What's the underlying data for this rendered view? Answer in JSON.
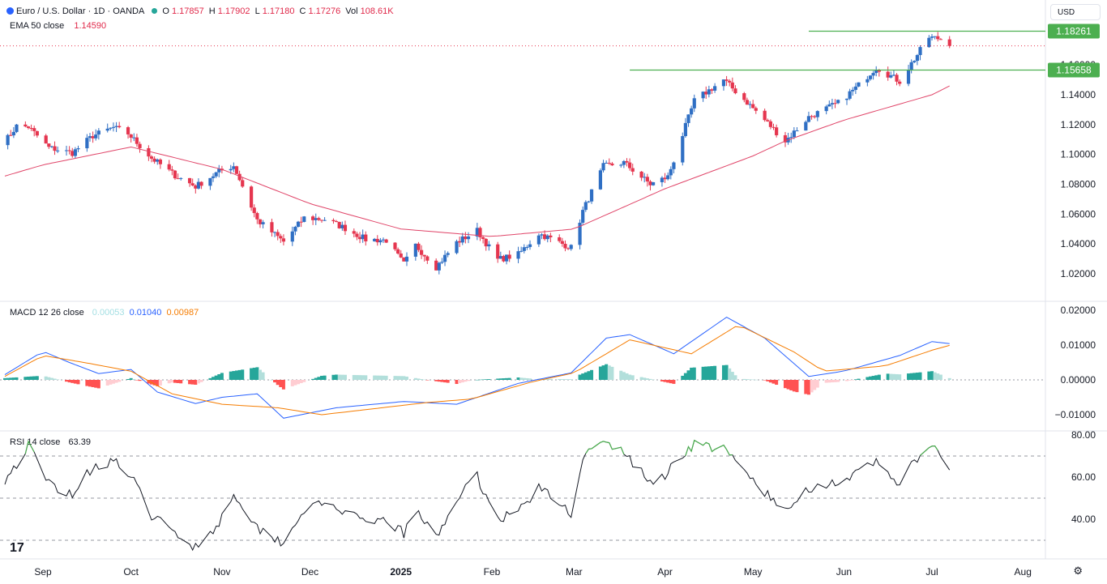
{
  "header": {
    "symbol_name": "Euro / U.S. Dollar · 1D · OANDA",
    "open_label": "O",
    "open_value": "1.17857",
    "high_label": "H",
    "high_value": "1.17902",
    "low_label": "L",
    "low_value": "1.17180",
    "close_label": "C",
    "close_value": "1.17276",
    "vol_label": "Vol",
    "vol_value": "108.61K",
    "ema_label": "EMA 50 close",
    "ema_value": "1.14590",
    "currency": "USD"
  },
  "macd_legend": {
    "label": "MACD 12 26 close",
    "hist": "0.00053",
    "macd": "0.01040",
    "signal": "0.00987"
  },
  "rsi_legend": {
    "label": "RSI 14 close",
    "value": "63.39"
  },
  "colors": {
    "up": "#2f6fc4",
    "down": "#e5364f",
    "ema": "#e04468",
    "macd": "#2962ff",
    "signal": "#f57c00",
    "rsi": "#131722",
    "resistance": "#4caf50"
  },
  "chart_data": [
    {
      "type": "candlestick",
      "title": "Euro / U.S. Dollar · 1D · OANDA",
      "ylim": [
        1.005,
        1.1875
      ],
      "y_ticks": [
        "1.02000",
        "1.04000",
        "1.06000",
        "1.08000",
        "1.10000",
        "1.12000",
        "1.14000",
        "1.16000"
      ],
      "x_ticks": [
        "Sep",
        "Oct",
        "Nov",
        "Dec",
        "2025",
        "Feb",
        "Mar",
        "Apr",
        "May",
        "Jun",
        "Jul",
        "Aug"
      ],
      "x_tick_dates": [
        "2024-09-01",
        "2024-10-01",
        "2024-11-01",
        "2024-12-01",
        "2025-01-01",
        "2025-02-01",
        "2025-03-01",
        "2025-04-01",
        "2025-05-01",
        "2025-06-01",
        "2025-07-01",
        "2025-08-01"
      ],
      "close_anchors": [
        [
          "2024-08-19",
          1.1085
        ],
        [
          "2024-08-23",
          1.119
        ],
        [
          "2024-08-27",
          1.1185
        ],
        [
          "2024-09-03",
          1.1045
        ],
        [
          "2024-09-11",
          1.101
        ],
        [
          "2024-09-18",
          1.1125
        ],
        [
          "2024-09-25",
          1.118
        ],
        [
          "2024-09-30",
          1.114
        ],
        [
          "2024-10-08",
          1.0975
        ],
        [
          "2024-10-16",
          1.086
        ],
        [
          "2024-10-23",
          1.0785
        ],
        [
          "2024-10-31",
          1.0885
        ],
        [
          "2024-11-05",
          1.0925
        ],
        [
          "2024-11-13",
          1.056
        ],
        [
          "2024-11-22",
          1.0415
        ],
        [
          "2024-11-29",
          1.0575
        ],
        [
          "2024-12-06",
          1.0565
        ],
        [
          "2024-12-13",
          1.0505
        ],
        [
          "2024-12-20",
          1.043
        ],
        [
          "2024-12-27",
          1.0425
        ],
        [
          "2025-01-02",
          1.0265
        ],
        [
          "2025-01-06",
          1.039
        ],
        [
          "2025-01-13",
          1.0245
        ],
        [
          "2025-01-20",
          1.041
        ],
        [
          "2025-01-27",
          1.049
        ],
        [
          "2025-02-03",
          1.0295
        ],
        [
          "2025-02-10",
          1.033
        ],
        [
          "2025-02-17",
          1.047
        ],
        [
          "2025-02-28",
          1.0375
        ],
        [
          "2025-03-04",
          1.062
        ],
        [
          "2025-03-11",
          1.092
        ],
        [
          "2025-03-18",
          1.0945
        ],
        [
          "2025-03-27",
          1.08
        ],
        [
          "2025-04-02",
          1.085
        ],
        [
          "2025-04-04",
          1.096
        ],
        [
          "2025-04-11",
          1.136
        ],
        [
          "2025-04-21",
          1.15
        ],
        [
          "2025-04-30",
          1.133
        ],
        [
          "2025-05-12",
          1.109
        ],
        [
          "2025-05-20",
          1.125
        ],
        [
          "2025-05-30",
          1.1345
        ],
        [
          "2025-06-05",
          1.1445
        ],
        [
          "2025-06-12",
          1.1585
        ],
        [
          "2025-06-20",
          1.149
        ],
        [
          "2025-06-24",
          1.161
        ],
        [
          "2025-06-30",
          1.1785
        ],
        [
          "2025-07-04",
          1.1775
        ],
        [
          "2025-07-07",
          1.1728
        ]
      ],
      "ema50": [
        [
          "2024-08-19",
          1.0855
        ],
        [
          "2024-09-01",
          1.093
        ],
        [
          "2024-10-01",
          1.105
        ],
        [
          "2024-11-01",
          1.09
        ],
        [
          "2024-12-01",
          1.067
        ],
        [
          "2025-01-01",
          1.05
        ],
        [
          "2025-02-01",
          1.045
        ],
        [
          "2025-03-01",
          1.05
        ],
        [
          "2025-04-01",
          1.077
        ],
        [
          "2025-05-01",
          1.099
        ],
        [
          "2025-05-12",
          1.109
        ],
        [
          "2025-06-01",
          1.123
        ],
        [
          "2025-07-01",
          1.14
        ],
        [
          "2025-07-07",
          1.1459
        ]
      ],
      "resistance_levels": [
        {
          "value": 1.18261,
          "label": "1.18261",
          "from": "2025-05-20",
          "to": "2025-07-31"
        },
        {
          "value": 1.15658,
          "label": "1.15658",
          "from": "2025-03-20",
          "to": "2025-07-31"
        }
      ],
      "last_close": 1.17276
    },
    {
      "type": "line",
      "title": "MACD 12 26 close",
      "ylim": [
        -0.0121,
        0.0205
      ],
      "y_ticks": [
        "0.02000",
        "0.01000",
        "0.00000",
        "−0.01000"
      ],
      "macd": [
        [
          "2024-08-19",
          0.0015
        ],
        [
          "2024-09-01",
          0.0082
        ],
        [
          "2024-09-10",
          0.005
        ],
        [
          "2024-09-20",
          0.0018
        ],
        [
          "2024-10-01",
          0.003
        ],
        [
          "2024-10-10",
          -0.0035
        ],
        [
          "2024-10-23",
          -0.0068
        ],
        [
          "2024-11-01",
          -0.005
        ],
        [
          "2024-11-13",
          -0.004
        ],
        [
          "2024-11-22",
          -0.011
        ],
        [
          "2024-12-10",
          -0.008
        ],
        [
          "2025-01-02",
          -0.0062
        ],
        [
          "2025-01-20",
          -0.007
        ],
        [
          "2025-02-10",
          -0.001
        ],
        [
          "2025-02-28",
          0.002
        ],
        [
          "2025-03-12",
          0.012
        ],
        [
          "2025-03-20",
          0.013
        ],
        [
          "2025-04-04",
          0.0075
        ],
        [
          "2025-04-22",
          0.018
        ],
        [
          "2025-05-05",
          0.012
        ],
        [
          "2025-05-20",
          0.001
        ],
        [
          "2025-06-01",
          0.0025
        ],
        [
          "2025-06-20",
          0.007
        ],
        [
          "2025-07-01",
          0.011
        ],
        [
          "2025-07-07",
          0.0104
        ]
      ],
      "signal": [
        [
          "2024-08-19",
          0.001
        ],
        [
          "2024-09-01",
          0.007
        ],
        [
          "2024-09-15",
          0.005
        ],
        [
          "2024-10-01",
          0.0025
        ],
        [
          "2024-10-15",
          -0.004
        ],
        [
          "2024-11-01",
          -0.007
        ],
        [
          "2024-11-20",
          -0.008
        ],
        [
          "2024-12-05",
          -0.01
        ],
        [
          "2025-01-10",
          -0.0065
        ],
        [
          "2025-01-25",
          -0.0055
        ],
        [
          "2025-02-15",
          -0.0005
        ],
        [
          "2025-03-01",
          0.002
        ],
        [
          "2025-03-20",
          0.0115
        ],
        [
          "2025-04-10",
          0.0075
        ],
        [
          "2025-04-26",
          0.0158
        ],
        [
          "2025-05-15",
          0.008
        ],
        [
          "2025-05-25",
          0.0025
        ],
        [
          "2025-06-15",
          0.004
        ],
        [
          "2025-07-01",
          0.0085
        ],
        [
          "2025-07-07",
          0.0099
        ]
      ],
      "histogram_note": "MACD minus signal"
    },
    {
      "type": "line",
      "title": "RSI 14 close",
      "ylim": [
        26,
        81
      ],
      "y_ticks": [
        "80.00",
        "60.00",
        "40.00"
      ],
      "levels": [
        70,
        50,
        30
      ],
      "rsi": [
        [
          "2024-08-19",
          59
        ],
        [
          "2024-08-23",
          66
        ],
        [
          "2024-08-27",
          75
        ],
        [
          "2024-09-03",
          57
        ],
        [
          "2024-09-11",
          52
        ],
        [
          "2024-09-18",
          65
        ],
        [
          "2024-09-25",
          68
        ],
        [
          "2024-10-01",
          60
        ],
        [
          "2024-10-08",
          42
        ],
        [
          "2024-10-16",
          33
        ],
        [
          "2024-10-23",
          27
        ],
        [
          "2024-10-31",
          38
        ],
        [
          "2024-11-05",
          53
        ],
        [
          "2024-11-13",
          36
        ],
        [
          "2024-11-22",
          29
        ],
        [
          "2024-11-29",
          45
        ],
        [
          "2024-12-06",
          47
        ],
        [
          "2024-12-13",
          44
        ],
        [
          "2024-12-20",
          37
        ],
        [
          "2024-12-27",
          40
        ],
        [
          "2025-01-02",
          33
        ],
        [
          "2025-01-06",
          44
        ],
        [
          "2025-01-13",
          31
        ],
        [
          "2025-01-20",
          50
        ],
        [
          "2025-01-27",
          60
        ],
        [
          "2025-02-03",
          40
        ],
        [
          "2025-02-10",
          44
        ],
        [
          "2025-02-17",
          55
        ],
        [
          "2025-02-28",
          43
        ],
        [
          "2025-03-04",
          70
        ],
        [
          "2025-03-11",
          76
        ],
        [
          "2025-03-18",
          72
        ],
        [
          "2025-03-27",
          57
        ],
        [
          "2025-04-02",
          62
        ],
        [
          "2025-04-04",
          67
        ],
        [
          "2025-04-11",
          76
        ],
        [
          "2025-04-21",
          73
        ],
        [
          "2025-04-30",
          60
        ],
        [
          "2025-05-12",
          43
        ],
        [
          "2025-05-20",
          55
        ],
        [
          "2025-05-30",
          58
        ],
        [
          "2025-06-05",
          61
        ],
        [
          "2025-06-12",
          67
        ],
        [
          "2025-06-20",
          57
        ],
        [
          "2025-06-24",
          65
        ],
        [
          "2025-06-30",
          75
        ],
        [
          "2025-07-04",
          70
        ],
        [
          "2025-07-07",
          63.39
        ]
      ]
    }
  ]
}
